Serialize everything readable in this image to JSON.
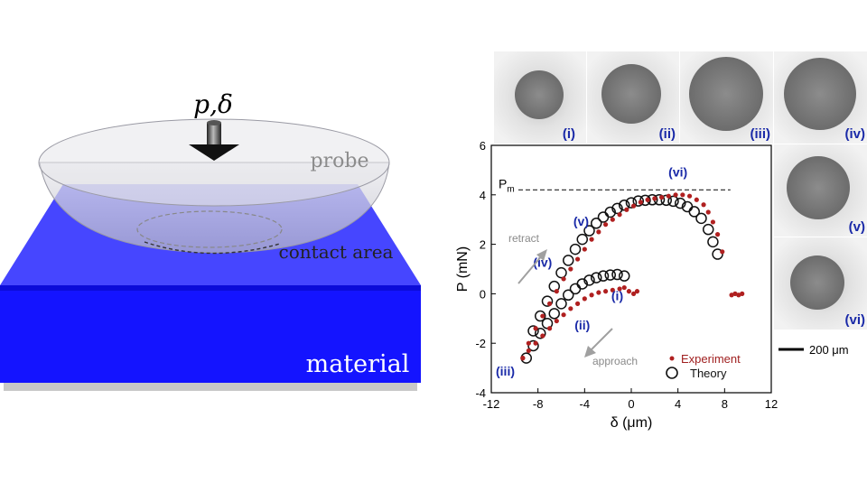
{
  "schematic": {
    "load_label": "p,δ",
    "probe_label": "probe",
    "contact_label": "contact area",
    "material_label": "material",
    "colors": {
      "material": "#1010ff",
      "probe": "#d6d6dc",
      "stage": "#c8c8c8"
    }
  },
  "frames": {
    "labels": [
      "(i)",
      "(ii)",
      "(iii)",
      "(iv)",
      "(v)",
      "(vi)"
    ],
    "label_color": "#1a2aa8",
    "scale_bar_label": "200 μm"
  },
  "chart_data": {
    "type": "scatter",
    "xlabel": "δ (μm)",
    "ylabel": "P (mN)",
    "xlim": [
      -12,
      12
    ],
    "ylim": [
      -4,
      6
    ],
    "x_ticks": [
      -12,
      -8,
      -4,
      0,
      4,
      8,
      12
    ],
    "y_ticks": [
      -4,
      -2,
      0,
      2,
      4,
      6
    ],
    "reference_line": {
      "label": "Pm",
      "y": 4.2
    },
    "legend": {
      "position": "bottom-right",
      "entries": [
        "Experiment",
        "Theory"
      ]
    },
    "arrows": [
      {
        "label": "retract",
        "direction": "up-right"
      },
      {
        "label": "approach",
        "direction": "down-left"
      }
    ],
    "stage_labels": [
      {
        "label": "(i)",
        "x": -1.2,
        "y": -0.25
      },
      {
        "label": "(ii)",
        "x": -4.2,
        "y": -1.45
      },
      {
        "label": "(iii)",
        "x": -10.8,
        "y": -3.3
      },
      {
        "label": "(iv)",
        "x": -7.6,
        "y": 1.1
      },
      {
        "label": "(v)",
        "x": -4.3,
        "y": 2.75
      },
      {
        "label": "(vi)",
        "x": 4.0,
        "y": 4.75
      }
    ],
    "series": [
      {
        "name": "Experiment",
        "color": "#b02020",
        "points": [
          [
            -9.3,
            -2.6
          ],
          [
            -8.8,
            -2.3
          ],
          [
            -8.2,
            -2.0
          ],
          [
            -7.6,
            -1.7
          ],
          [
            -7.0,
            -1.4
          ],
          [
            -6.4,
            -1.1
          ],
          [
            -5.8,
            -0.85
          ],
          [
            -5.2,
            -0.6
          ],
          [
            -4.6,
            -0.4
          ],
          [
            -4.0,
            -0.2
          ],
          [
            -3.4,
            -0.05
          ],
          [
            -2.8,
            0.05
          ],
          [
            -2.2,
            0.1
          ],
          [
            -1.6,
            0.15
          ],
          [
            -1.0,
            0.2
          ],
          [
            -0.6,
            0.25
          ],
          [
            -0.2,
            0.1
          ],
          [
            0.2,
            0.0
          ],
          [
            0.5,
            0.1
          ],
          [
            -9.3,
            -2.6
          ],
          [
            -8.8,
            -2.0
          ],
          [
            -8.2,
            -1.4
          ],
          [
            -7.6,
            -0.9
          ],
          [
            -7.0,
            -0.4
          ],
          [
            -6.4,
            0.1
          ],
          [
            -5.8,
            0.6
          ],
          [
            -5.2,
            1.0
          ],
          [
            -4.6,
            1.4
          ],
          [
            -4.0,
            1.8
          ],
          [
            -3.4,
            2.2
          ],
          [
            -2.8,
            2.5
          ],
          [
            -2.2,
            2.8
          ],
          [
            -1.6,
            3.0
          ],
          [
            -1.0,
            3.2
          ],
          [
            -0.4,
            3.4
          ],
          [
            0.2,
            3.55
          ],
          [
            0.8,
            3.7
          ],
          [
            1.4,
            3.8
          ],
          [
            2.0,
            3.85
          ],
          [
            2.6,
            3.9
          ],
          [
            3.2,
            3.95
          ],
          [
            3.8,
            4.0
          ],
          [
            4.4,
            4.0
          ],
          [
            5.0,
            3.95
          ],
          [
            5.6,
            3.8
          ],
          [
            6.2,
            3.6
          ],
          [
            6.6,
            3.3
          ],
          [
            7.0,
            2.9
          ],
          [
            7.4,
            2.4
          ],
          [
            7.8,
            1.7
          ],
          [
            8.6,
            -0.05
          ],
          [
            8.9,
            0.0
          ],
          [
            9.2,
            -0.05
          ],
          [
            9.5,
            0.0
          ]
        ]
      },
      {
        "name": "Theory",
        "color": "#111111",
        "points": [
          [
            -9.0,
            -2.6
          ],
          [
            -8.4,
            -2.1
          ],
          [
            -7.8,
            -1.6
          ],
          [
            -7.2,
            -1.2
          ],
          [
            -6.6,
            -0.8
          ],
          [
            -6.0,
            -0.4
          ],
          [
            -5.4,
            -0.05
          ],
          [
            -4.8,
            0.2
          ],
          [
            -4.2,
            0.4
          ],
          [
            -3.6,
            0.55
          ],
          [
            -3.0,
            0.65
          ],
          [
            -2.4,
            0.72
          ],
          [
            -1.8,
            0.76
          ],
          [
            -1.2,
            0.78
          ],
          [
            -0.6,
            0.72
          ],
          [
            -8.4,
            -1.5
          ],
          [
            -7.8,
            -0.9
          ],
          [
            -7.2,
            -0.3
          ],
          [
            -6.6,
            0.3
          ],
          [
            -6.0,
            0.85
          ],
          [
            -5.4,
            1.35
          ],
          [
            -4.8,
            1.8
          ],
          [
            -4.2,
            2.2
          ],
          [
            -3.6,
            2.55
          ],
          [
            -3.0,
            2.85
          ],
          [
            -2.4,
            3.1
          ],
          [
            -1.8,
            3.3
          ],
          [
            -1.2,
            3.45
          ],
          [
            -0.6,
            3.58
          ],
          [
            0.0,
            3.68
          ],
          [
            0.6,
            3.75
          ],
          [
            1.2,
            3.78
          ],
          [
            1.8,
            3.8
          ],
          [
            2.4,
            3.8
          ],
          [
            3.0,
            3.78
          ],
          [
            3.6,
            3.74
          ],
          [
            4.2,
            3.66
          ],
          [
            4.8,
            3.52
          ],
          [
            5.4,
            3.32
          ],
          [
            6.0,
            3.05
          ],
          [
            6.6,
            2.6
          ],
          [
            7.0,
            2.1
          ],
          [
            7.4,
            1.6
          ]
        ]
      }
    ]
  }
}
